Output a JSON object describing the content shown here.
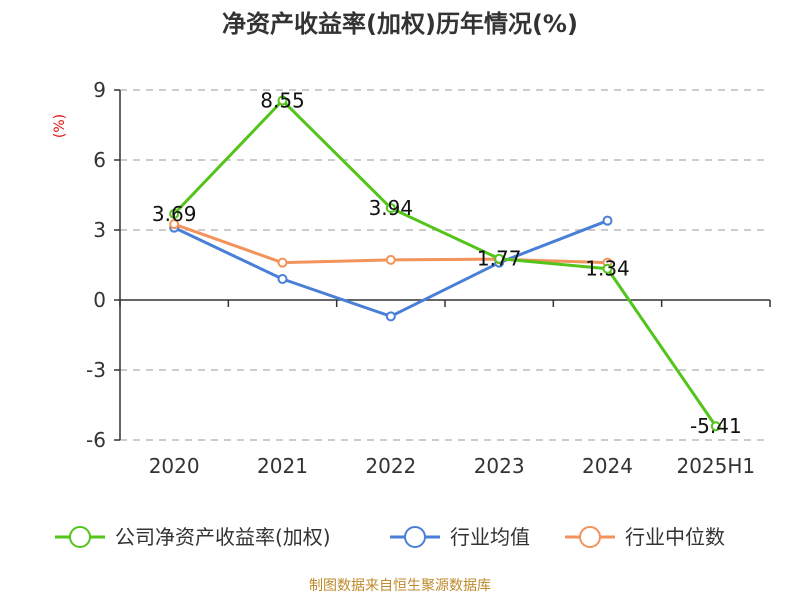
{
  "chart_data": {
    "type": "line",
    "title": "净资产收益率(加权)历年情况(%)",
    "unit": "(%)",
    "categories": [
      "2020",
      "2021",
      "2022",
      "2023",
      "2024",
      "2025H1"
    ],
    "ylim": [
      -6,
      9
    ],
    "yticks": [
      "9",
      "6",
      "3",
      "0",
      "-3",
      "-6"
    ],
    "grid": true,
    "legend_position": "bottom",
    "series": [
      {
        "name": "公司净资产收益率(加权)",
        "color": "#52c41a",
        "values": [
          3.69,
          8.55,
          3.94,
          1.77,
          1.34,
          -5.41
        ],
        "labels": [
          "3.69",
          "8.55",
          "3.94",
          "1.77",
          "1.34",
          "-5.41"
        ]
      },
      {
        "name": "行业均值",
        "color": "#4a7fd8",
        "values": [
          3.1,
          0.9,
          -0.7,
          1.6,
          3.4,
          null
        ]
      },
      {
        "name": "行业中位数",
        "color": "#f2935c",
        "values": [
          3.25,
          1.6,
          1.72,
          1.75,
          1.6,
          null
        ]
      }
    ],
    "source": "制图数据来自恒生聚源数据库"
  }
}
